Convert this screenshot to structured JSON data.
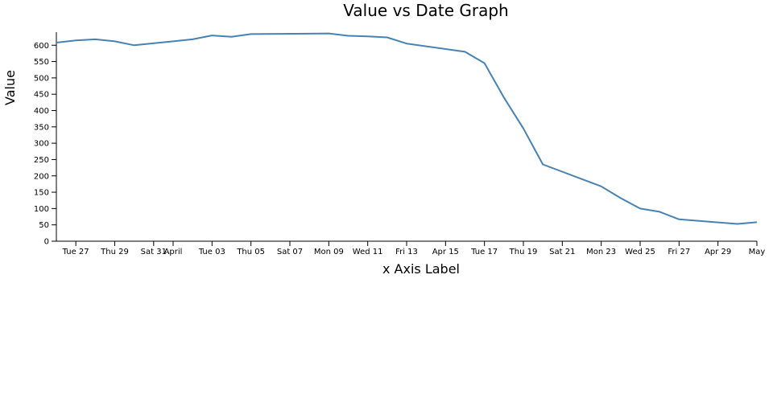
{
  "chart_data": {
    "type": "line",
    "title": "Value vs Date Graph",
    "xlabel": "x Axis Label",
    "ylabel": "Value",
    "ylim": [
      0,
      640
    ],
    "xlim": [
      "2018-03-26",
      "2018-05-01"
    ],
    "grid": false,
    "legend": "none",
    "color": "#4682b4",
    "y_ticks": [
      0,
      50,
      100,
      150,
      200,
      250,
      300,
      350,
      400,
      450,
      500,
      550,
      600
    ],
    "x_ticks": [
      {
        "date": "2018-03-27",
        "label": "Tue 27"
      },
      {
        "date": "2018-03-29",
        "label": "Thu 29"
      },
      {
        "date": "2018-03-31",
        "label": "Sat 31"
      },
      {
        "date": "2018-04-01",
        "label": "April"
      },
      {
        "date": "2018-04-03",
        "label": "Tue 03"
      },
      {
        "date": "2018-04-05",
        "label": "Thu 05"
      },
      {
        "date": "2018-04-07",
        "label": "Sat 07"
      },
      {
        "date": "2018-04-09",
        "label": "Mon 09"
      },
      {
        "date": "2018-04-11",
        "label": "Wed 11"
      },
      {
        "date": "2018-04-13",
        "label": "Fri 13"
      },
      {
        "date": "2018-04-15",
        "label": "Apr 15"
      },
      {
        "date": "2018-04-17",
        "label": "Tue 17"
      },
      {
        "date": "2018-04-19",
        "label": "Thu 19"
      },
      {
        "date": "2018-04-21",
        "label": "Sat 21"
      },
      {
        "date": "2018-04-23",
        "label": "Mon 23"
      },
      {
        "date": "2018-04-25",
        "label": "Wed 25"
      },
      {
        "date": "2018-04-27",
        "label": "Fri 27"
      },
      {
        "date": "2018-04-29",
        "label": "Apr 29"
      },
      {
        "date": "2018-05-01",
        "label": "May"
      }
    ],
    "series": [
      {
        "x": [
          "2018-03-26",
          "2018-03-27",
          "2018-03-28",
          "2018-03-29",
          "2018-03-30",
          "2018-04-01",
          "2018-04-02",
          "2018-04-03",
          "2018-04-04",
          "2018-04-05",
          "2018-04-09",
          "2018-04-10",
          "2018-04-11",
          "2018-04-12",
          "2018-04-13",
          "2018-04-16",
          "2018-04-17",
          "2018-04-18",
          "2018-04-19",
          "2018-04-20",
          "2018-04-23",
          "2018-04-24",
          "2018-04-25",
          "2018-04-26",
          "2018-04-27",
          "2018-04-30",
          "2018-05-01"
        ],
        "y": [
          608,
          615,
          618,
          612,
          600,
          612,
          618,
          630,
          626,
          634,
          636,
          629,
          627,
          624,
          605,
          580,
          545,
          440,
          345,
          235,
          168,
          132,
          100,
          90,
          67,
          53,
          58
        ]
      }
    ]
  }
}
